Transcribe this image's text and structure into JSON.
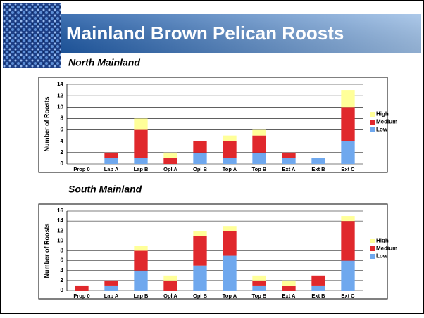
{
  "title": "Mainland Brown Pelican Roosts",
  "chart_data": [
    {
      "type": "bar",
      "stacked": true,
      "title": "North Mainland",
      "y_label": "Number of Roosts",
      "categories": [
        "Prop 0",
        "Lap A",
        "Lap B",
        "Opl A",
        "Opl B",
        "Top A",
        "Top B",
        "Ext A",
        "Ext B",
        "Ext C"
      ],
      "series": [
        {
          "name": "Low",
          "color": "#6fa8ee",
          "values": [
            0,
            1,
            1,
            0,
            2,
            1,
            2,
            1,
            1,
            4
          ]
        },
        {
          "name": "Medium",
          "color": "#e0282c",
          "values": [
            0,
            1,
            5,
            1,
            2,
            3,
            3,
            1,
            0,
            6
          ]
        },
        {
          "name": "High",
          "color": "#ffff99",
          "values": [
            0,
            0,
            2,
            1,
            0,
            1,
            1,
            0,
            0,
            3
          ]
        }
      ],
      "ylim": [
        0,
        14
      ],
      "yticks": [
        0,
        2,
        4,
        6,
        8,
        10,
        12,
        14
      ],
      "grid": true,
      "legend": "right"
    },
    {
      "type": "bar",
      "stacked": true,
      "title": "South Mainland",
      "y_label": "Number of Roosts",
      "categories": [
        "Prop 0",
        "Lap A",
        "Lap B",
        "Opl A",
        "Opl B",
        "Top A",
        "Top B",
        "Ext A",
        "Ext B",
        "Ext C"
      ],
      "series": [
        {
          "name": "Low",
          "color": "#6fa8ee",
          "values": [
            0,
            1,
            4,
            0,
            5,
            7,
            1,
            0,
            1,
            6
          ]
        },
        {
          "name": "Medium",
          "color": "#e0282c",
          "values": [
            1,
            1,
            4,
            2,
            6,
            5,
            1,
            1,
            2,
            8
          ]
        },
        {
          "name": "High",
          "color": "#ffff99",
          "values": [
            0,
            0,
            1,
            1,
            1,
            1,
            1,
            1,
            0,
            1
          ]
        }
      ],
      "ylim": [
        0,
        16
      ],
      "yticks": [
        0,
        2,
        4,
        6,
        8,
        10,
        12,
        14,
        16
      ],
      "grid": true,
      "legend": "right"
    }
  ]
}
